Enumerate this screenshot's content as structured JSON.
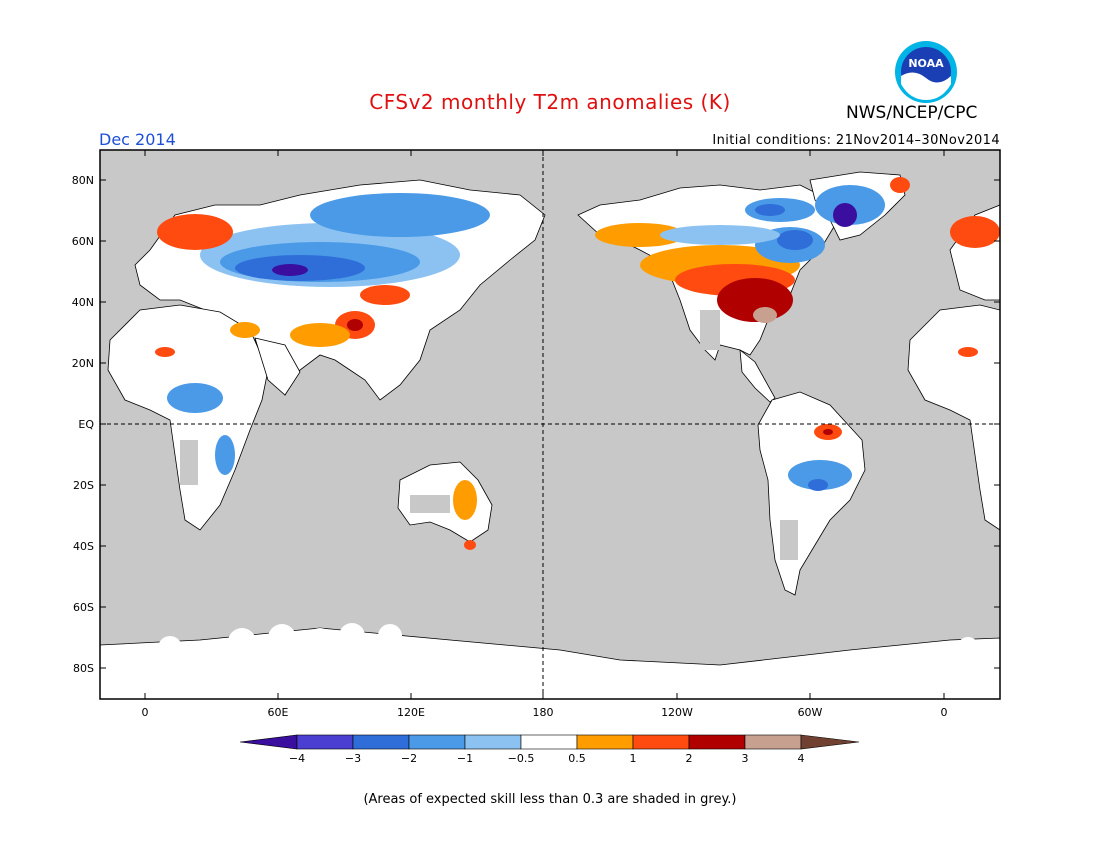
{
  "header": {
    "title": "CFSv2 monthly T2m anomalies (K)",
    "agency": "NWS/NCEP/CPC",
    "logo_text": "NOAA",
    "month": "Dec 2014",
    "initial_conditions": "Initial conditions: 21Nov2014–30Nov2014"
  },
  "axes": {
    "lat_labels": [
      "80N",
      "60N",
      "40N",
      "20N",
      "EQ",
      "20S",
      "40S",
      "60S",
      "80S"
    ],
    "lon_labels": [
      "0",
      "60E",
      "120E",
      "180",
      "120W",
      "60W",
      "0"
    ]
  },
  "colorbar": {
    "ticks": [
      "−4",
      "−3",
      "−2",
      "−1",
      "−0.5",
      "0.5",
      "1",
      "2",
      "3",
      "4"
    ],
    "colors": [
      "#3a0fa0",
      "#4a3fd0",
      "#2f6ed8",
      "#4a9ae8",
      "#8cc2f2",
      "#ffffff",
      "#ff9d00",
      "#ff4a10",
      "#b00000",
      "#c8a090",
      "#704030"
    ]
  },
  "palette": {
    "ocean_grey": "#c8c8c8",
    "land_white": "#ffffff",
    "title_red": "#e01010",
    "month_blue": "#1d4fd6"
  },
  "footnote": "(Areas of expected skill less than 0.3 are shaded in grey.)"
}
